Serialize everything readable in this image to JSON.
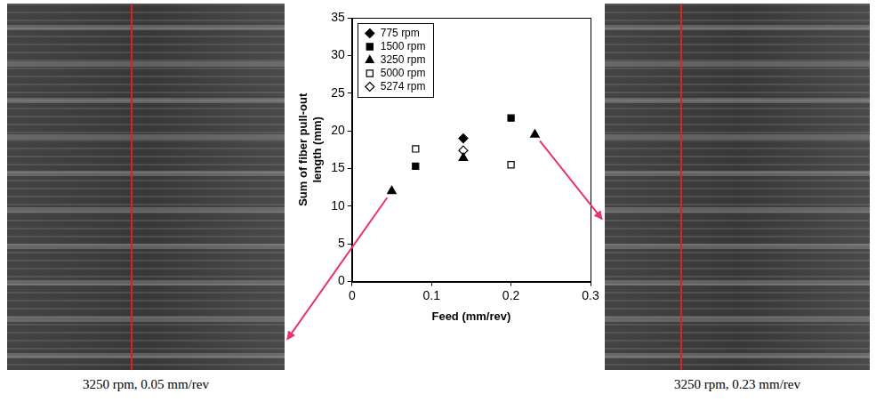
{
  "chart_data": {
    "type": "scatter",
    "x_label": "Feed (mm/rev)",
    "y_label": "Sum of fiber pull-out length (mm)",
    "xlim": [
      0,
      0.3
    ],
    "xticks": [
      0,
      0.1,
      0.2,
      0.3
    ],
    "ylim": [
      0,
      35
    ],
    "yticks": [
      0,
      5,
      10,
      15,
      20,
      25,
      30,
      35
    ],
    "grid": false,
    "legend": "upper left",
    "series": [
      {
        "name": "775 rpm",
        "color": "#000000",
        "marker": "diamond",
        "x": [
          0.14
        ],
        "values": [
          19
        ]
      },
      {
        "name": "1500 rpm",
        "color": "#000000",
        "marker": "square",
        "x": [
          0.08,
          0.2
        ],
        "values": [
          15.3,
          21.7
        ]
      },
      {
        "name": "3250 rpm",
        "color": "#000000",
        "marker": "triangle",
        "x": [
          0.05,
          0.14,
          0.23
        ],
        "values": [
          12,
          16.4,
          19.5
        ]
      },
      {
        "name": "5000 rpm",
        "color": "#000000",
        "marker": "open square",
        "x": [
          0.08,
          0.2
        ],
        "values": [
          17.6,
          15.5
        ]
      },
      {
        "name": "5274 rpm",
        "color": "#000000",
        "marker": "open diamond",
        "x": [
          0.14
        ],
        "values": [
          17.4
        ]
      }
    ]
  },
  "images": [
    {
      "caption": "3250 rpm, 0.05 mm/rev"
    },
    {
      "caption": "3250 rpm, 0.23 mm/rev"
    }
  ]
}
